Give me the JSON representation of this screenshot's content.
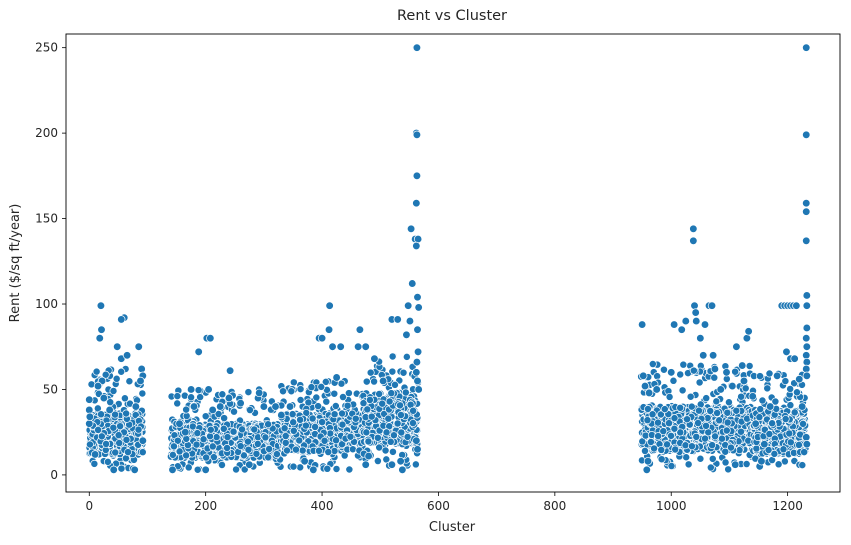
{
  "chart_data": {
    "type": "scatter",
    "title": "Rent vs Cluster",
    "xlabel": "Cluster",
    "ylabel": "Rent ($/sq ft/year)",
    "xlim": [
      -40,
      1290
    ],
    "ylim": [
      -10,
      258
    ],
    "xticks": [
      0,
      200,
      400,
      600,
      800,
      1000,
      1200
    ],
    "yticks": [
      0,
      50,
      100,
      150,
      200,
      250
    ],
    "grid": false,
    "marker_color": "#1f77b4",
    "marker_edge_color": "#ffffff",
    "density_bands": [
      {
        "x_range": [
          0,
          92
        ],
        "y_core": [
          12,
          36
        ],
        "y_outer": [
          3,
          62
        ]
      },
      {
        "x_range": [
          140,
          330
        ],
        "y_core": [
          10,
          30
        ],
        "y_outer": [
          3,
          50
        ]
      },
      {
        "x_range": [
          330,
          470
        ],
        "y_core": [
          14,
          36
        ],
        "y_outer": [
          3,
          55
        ]
      },
      {
        "x_range": [
          470,
          565
        ],
        "y_core": [
          18,
          48
        ],
        "y_outer": [
          5,
          70
        ]
      },
      {
        "x_range": [
          948,
          1140
        ],
        "y_core": [
          14,
          40
        ],
        "y_outer": [
          3,
          65
        ]
      },
      {
        "x_range": [
          1140,
          1232
        ],
        "y_core": [
          12,
          38
        ],
        "y_outer": [
          5,
          60
        ]
      }
    ],
    "points": [
      [
        0,
        44
      ],
      [
        0,
        38
      ],
      [
        0,
        30
      ],
      [
        1,
        34
      ],
      [
        18,
        80
      ],
      [
        20,
        99
      ],
      [
        21,
        85
      ],
      [
        22,
        55
      ],
      [
        15,
        52
      ],
      [
        48,
        75
      ],
      [
        60,
        92
      ],
      [
        55,
        91
      ],
      [
        55,
        68
      ],
      [
        65,
        70
      ],
      [
        25,
        45
      ],
      [
        35,
        38
      ],
      [
        80,
        40
      ],
      [
        85,
        75
      ],
      [
        90,
        62
      ],
      [
        92,
        58
      ],
      [
        88,
        55
      ],
      [
        42,
        3
      ],
      [
        78,
        3
      ],
      [
        92,
        20
      ],
      [
        5,
        13
      ],
      [
        10,
        12
      ],
      [
        175,
        50
      ],
      [
        180,
        40
      ],
      [
        188,
        72
      ],
      [
        205,
        50
      ],
      [
        202,
        80
      ],
      [
        208,
        80
      ],
      [
        212,
        38
      ],
      [
        225,
        40
      ],
      [
        240,
        45
      ],
      [
        242,
        61
      ],
      [
        143,
        3
      ],
      [
        155,
        30
      ],
      [
        165,
        25
      ],
      [
        200,
        3
      ],
      [
        260,
        42
      ],
      [
        290,
        45
      ],
      [
        292,
        48
      ],
      [
        300,
        40
      ],
      [
        330,
        35
      ],
      [
        320,
        40
      ],
      [
        345,
        40
      ],
      [
        275,
        6
      ],
      [
        370,
        8
      ],
      [
        385,
        3
      ],
      [
        395,
        80
      ],
      [
        400,
        80
      ],
      [
        413,
        99
      ],
      [
        412,
        85
      ],
      [
        418,
        75
      ],
      [
        432,
        75
      ],
      [
        425,
        57
      ],
      [
        465,
        85
      ],
      [
        462,
        75
      ],
      [
        475,
        75
      ],
      [
        475,
        6
      ],
      [
        480,
        11
      ],
      [
        490,
        68
      ],
      [
        505,
        55
      ],
      [
        520,
        91
      ],
      [
        530,
        91
      ],
      [
        520,
        6
      ],
      [
        535,
        8
      ],
      [
        538,
        3
      ],
      [
        545,
        82
      ],
      [
        548,
        99
      ],
      [
        551,
        90
      ],
      [
        553,
        144
      ],
      [
        555,
        112
      ],
      [
        562,
        250
      ],
      [
        563,
        250
      ],
      [
        562,
        200
      ],
      [
        563,
        199
      ],
      [
        563,
        175
      ],
      [
        562,
        159
      ],
      [
        560,
        138
      ],
      [
        565,
        138
      ],
      [
        562,
        134
      ],
      [
        564,
        104
      ],
      [
        566,
        98
      ],
      [
        564,
        85
      ],
      [
        565,
        72
      ],
      [
        563,
        66
      ],
      [
        562,
        60
      ],
      [
        564,
        55
      ],
      [
        566,
        50
      ],
      [
        562,
        20
      ],
      [
        564,
        15
      ],
      [
        950,
        88
      ],
      [
        952,
        58
      ],
      [
        955,
        52
      ],
      [
        958,
        3
      ],
      [
        960,
        8
      ],
      [
        962,
        48
      ],
      [
        975,
        50
      ],
      [
        1000,
        60
      ],
      [
        1005,
        88
      ],
      [
        1018,
        85
      ],
      [
        1025,
        90
      ],
      [
        1038,
        144
      ],
      [
        1038,
        137
      ],
      [
        1040,
        99
      ],
      [
        1042,
        95
      ],
      [
        1043,
        90
      ],
      [
        1050,
        80
      ],
      [
        1055,
        70
      ],
      [
        1058,
        88
      ],
      [
        1065,
        99
      ],
      [
        1070,
        99
      ],
      [
        1072,
        70
      ],
      [
        1075,
        62
      ],
      [
        1085,
        50
      ],
      [
        1095,
        60
      ],
      [
        1105,
        52
      ],
      [
        1110,
        6
      ],
      [
        1112,
        75
      ],
      [
        1122,
        64
      ],
      [
        1130,
        80
      ],
      [
        1133,
        84
      ],
      [
        1125,
        55
      ],
      [
        1140,
        46
      ],
      [
        1145,
        30
      ],
      [
        1152,
        5
      ],
      [
        1155,
        8
      ],
      [
        1160,
        18
      ],
      [
        1170,
        40
      ],
      [
        1182,
        58
      ],
      [
        1190,
        99
      ],
      [
        1195,
        99
      ],
      [
        1200,
        99
      ],
      [
        1205,
        99
      ],
      [
        1210,
        99
      ],
      [
        1215,
        99
      ],
      [
        1198,
        72
      ],
      [
        1205,
        68
      ],
      [
        1212,
        68
      ],
      [
        1220,
        56
      ],
      [
        1225,
        40
      ],
      [
        1232,
        250
      ],
      [
        1232,
        199
      ],
      [
        1232,
        159
      ],
      [
        1232,
        154
      ],
      [
        1232,
        137
      ],
      [
        1233,
        105
      ],
      [
        1233,
        99
      ],
      [
        1233,
        86
      ],
      [
        1232,
        80
      ],
      [
        1233,
        75
      ],
      [
        1232,
        70
      ],
      [
        1233,
        66
      ],
      [
        1232,
        62
      ],
      [
        1233,
        58
      ],
      [
        1232,
        22
      ],
      [
        1233,
        18
      ]
    ]
  }
}
